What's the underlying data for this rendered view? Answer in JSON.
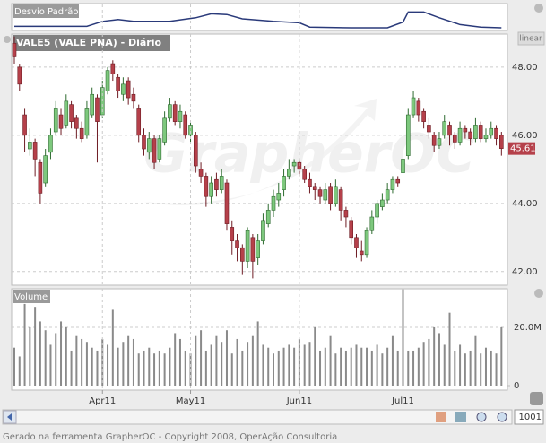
{
  "chart_data": [
    {
      "type": "line",
      "title": "Desvio Padrão",
      "color": "#2a3a7a",
      "x": [
        0,
        14,
        17,
        20,
        23,
        30,
        35,
        38,
        41,
        44,
        50,
        55,
        57,
        65,
        72,
        75,
        76,
        79,
        82,
        86,
        90,
        94
      ],
      "values": [
        0.13,
        0.13,
        0.33,
        0.4,
        0.33,
        0.33,
        0.47,
        0.63,
        0.6,
        0.43,
        0.33,
        0.27,
        0.1,
        0.07,
        0.07,
        0.3,
        0.7,
        0.7,
        0.47,
        0.2,
        0.1,
        0.07
      ],
      "ylim": [
        0,
        1
      ]
    },
    {
      "type": "candlestick",
      "title": "VALE5 (VALE PNA) - Diário",
      "scale_label": "linear",
      "watermark": "GrapherOC",
      "up_color": "#7dc87d",
      "down_color": "#b5404a",
      "grid": true,
      "ylim": [
        41.6,
        48.97
      ],
      "yticks": [
        {
          "value": 42,
          "label": "42.00"
        },
        {
          "value": 44,
          "label": "44.00"
        },
        {
          "value": 46,
          "label": "46.00"
        },
        {
          "value": 48,
          "label": "48.00"
        }
      ],
      "open": [
        48.7,
        48.0,
        46.6,
        45.6,
        45.8,
        45.2,
        44.6,
        45.5,
        46.1,
        46.6,
        46.3,
        46.9,
        46.5,
        46.2,
        46.0,
        46.6,
        47.1,
        46.6,
        47.3,
        48.1,
        47.7,
        47.2,
        47.6,
        47.2,
        46.8,
        46.0,
        45.5,
        45.9,
        45.3,
        45.8,
        46.5,
        46.9,
        46.4,
        46.6,
        46.0,
        46.0,
        45.0,
        44.8,
        44.2,
        44.7,
        44.4,
        44.6,
        43.3,
        42.9,
        42.7,
        42.3,
        43.0,
        42.4,
        42.9,
        43.4,
        43.8,
        44.1,
        44.4,
        44.8,
        45.1,
        45.2,
        45.0,
        44.7,
        44.5,
        44.4,
        44.1,
        44.5,
        44.0,
        44.4,
        43.8,
        43.5,
        43.0,
        42.6,
        42.5,
        43.2,
        43.6,
        43.9,
        44.1,
        44.4,
        44.7,
        44.9,
        45.4,
        46.6,
        47.0,
        46.7,
        46.3,
        46.0,
        45.7,
        46.0,
        46.3,
        46.0,
        45.8,
        46.2,
        46.1,
        45.9,
        46.3,
        45.9,
        46.0,
        46.2,
        46.0
      ],
      "high": [
        48.9,
        48.1,
        46.8,
        46.2,
        45.9,
        45.3,
        45.6,
        46.2,
        47.0,
        46.8,
        47.2,
        47.0,
        46.6,
        46.4,
        47.0,
        47.4,
        47.2,
        47.6,
        48.0,
        48.2,
        47.8,
        47.7,
        47.7,
        47.4,
        46.9,
        46.2,
        46.1,
        46.0,
        46.0,
        46.7,
        47.1,
        47.0,
        46.9,
        46.7,
        46.4,
        46.1,
        45.2,
        44.9,
        44.8,
        44.9,
        45.0,
        44.7,
        43.5,
        43.1,
        42.8,
        43.3,
        43.1,
        43.1,
        43.7,
        44.0,
        44.4,
        44.6,
        45.0,
        45.3,
        45.3,
        45.3,
        45.1,
        44.9,
        44.6,
        44.5,
        44.6,
        44.6,
        44.7,
        44.5,
        43.9,
        43.6,
        43.1,
        42.9,
        43.3,
        43.8,
        44.1,
        44.3,
        44.6,
        44.8,
        44.8,
        45.6,
        46.8,
        47.3,
        47.1,
        46.8,
        46.5,
        46.1,
        46.1,
        46.6,
        46.4,
        46.1,
        46.4,
        46.3,
        46.2,
        46.5,
        46.4,
        46.2,
        46.4,
        46.3,
        46.1
      ],
      "low": [
        48.1,
        47.3,
        45.5,
        45.4,
        44.8,
        44.0,
        44.5,
        45.3,
        46.0,
        46.0,
        46.2,
        46.2,
        45.9,
        45.8,
        45.9,
        46.5,
        45.2,
        46.5,
        47.2,
        47.6,
        47.1,
        47.0,
        46.9,
        46.8,
        45.8,
        45.4,
        45.3,
        45.0,
        45.2,
        45.7,
        46.4,
        46.3,
        46.2,
        45.9,
        45.8,
        44.9,
        44.6,
        43.9,
        44.0,
        44.2,
        44.3,
        43.2,
        42.5,
        42.3,
        41.9,
        42.1,
        41.8,
        42.2,
        42.8,
        43.3,
        43.6,
        43.9,
        44.2,
        44.7,
        44.9,
        44.8,
        44.6,
        44.3,
        44.1,
        44.0,
        44.0,
        43.8,
        43.9,
        43.5,
        43.3,
        42.8,
        42.4,
        42.3,
        42.4,
        43.1,
        43.4,
        43.8,
        44.0,
        44.3,
        44.5,
        44.8,
        45.3,
        46.5,
        46.4,
        46.2,
        45.9,
        45.5,
        45.6,
        45.9,
        45.7,
        45.6,
        45.7,
        45.9,
        45.7,
        45.8,
        45.8,
        45.8,
        45.9,
        45.7,
        45.4
      ],
      "close": [
        48.3,
        47.5,
        46.0,
        45.8,
        45.3,
        44.3,
        45.4,
        46.0,
        46.8,
        46.2,
        47.0,
        46.4,
        46.2,
        45.9,
        46.8,
        47.2,
        46.4,
        47.4,
        47.9,
        47.8,
        47.3,
        47.5,
        47.1,
        47.0,
        46.0,
        45.6,
        45.9,
        45.2,
        45.9,
        46.5,
        46.9,
        46.4,
        46.7,
        46.0,
        46.3,
        45.1,
        44.8,
        44.2,
        44.6,
        44.4,
        44.8,
        43.4,
        42.9,
        42.7,
        42.3,
        43.2,
        42.3,
        42.9,
        43.5,
        43.8,
        44.2,
        44.3,
        44.8,
        45.0,
        45.2,
        45.0,
        44.7,
        44.5,
        44.4,
        44.2,
        44.4,
        44.0,
        44.5,
        43.8,
        43.6,
        43.0,
        42.7,
        42.5,
        43.2,
        43.6,
        44.0,
        44.1,
        44.4,
        44.7,
        44.6,
        45.3,
        46.6,
        47.1,
        46.6,
        46.4,
        46.1,
        45.7,
        45.9,
        46.4,
        46.0,
        45.8,
        46.2,
        46.1,
        45.9,
        46.3,
        45.9,
        46.0,
        46.2,
        45.9,
        45.61
      ]
    },
    {
      "type": "bar",
      "title": "Volume",
      "color": "#8a8a8a",
      "grid": true,
      "ylim": [
        -1500000,
        33200000
      ],
      "yticks": [
        0,
        {
          "value": 20000000,
          "label": "20.0M"
        }
      ],
      "categories": [
        null,
        null,
        null,
        null,
        null,
        null,
        null,
        null,
        null,
        null,
        null,
        null,
        null,
        null,
        null,
        null,
        null,
        "Apr11",
        null,
        null,
        null,
        null,
        null,
        null,
        null,
        null,
        null,
        null,
        null,
        null,
        null,
        null,
        null,
        null,
        "May11",
        null,
        null,
        null,
        null,
        null,
        null,
        null,
        null,
        null,
        null,
        null,
        null,
        null,
        null,
        null,
        null,
        null,
        null,
        null,
        null,
        "Jun11",
        null,
        null,
        null,
        null,
        null,
        null,
        null,
        null,
        null,
        null,
        null,
        null,
        null,
        null,
        null,
        null,
        null,
        null,
        null,
        "Jul11",
        null,
        null,
        null,
        null,
        null,
        null,
        null,
        null,
        null,
        null,
        null,
        null,
        null,
        null,
        null,
        null,
        null,
        null,
        null
      ],
      "values": [
        13000000,
        10000000,
        28000000,
        20000000,
        27000000,
        22000000,
        19000000,
        14000000,
        18000000,
        22000000,
        20000000,
        12000000,
        17000000,
        16000000,
        15000000,
        13000000,
        12000000,
        16000000,
        14000000,
        26000000,
        13000000,
        15000000,
        17000000,
        16000000,
        11000000,
        12000000,
        13000000,
        11000000,
        12000000,
        11000000,
        13000000,
        18000000,
        16000000,
        12000000,
        11000000,
        17000000,
        19000000,
        12000000,
        14000000,
        17000000,
        15000000,
        19000000,
        11000000,
        16000000,
        12000000,
        15000000,
        17000000,
        22000000,
        14000000,
        13000000,
        11000000,
        12000000,
        13000000,
        14000000,
        13000000,
        16000000,
        14000000,
        15000000,
        20000000,
        12000000,
        13000000,
        17000000,
        11000000,
        13000000,
        12000000,
        13000000,
        14000000,
        13000000,
        13000000,
        12000000,
        14000000,
        11000000,
        13000000,
        17000000,
        12000000,
        33000000,
        12000000,
        12000000,
        13000000,
        15000000,
        16000000,
        20000000,
        18000000,
        14000000,
        25000000,
        12000000,
        14000000,
        11000000,
        12000000,
        17000000,
        11000000,
        13000000,
        12000000,
        11000000,
        20000000
      ]
    }
  ],
  "footer": "Gerado na ferramenta GrapherOC - Copyright 2008, OperAção Consultoria",
  "zoom": "1001"
}
